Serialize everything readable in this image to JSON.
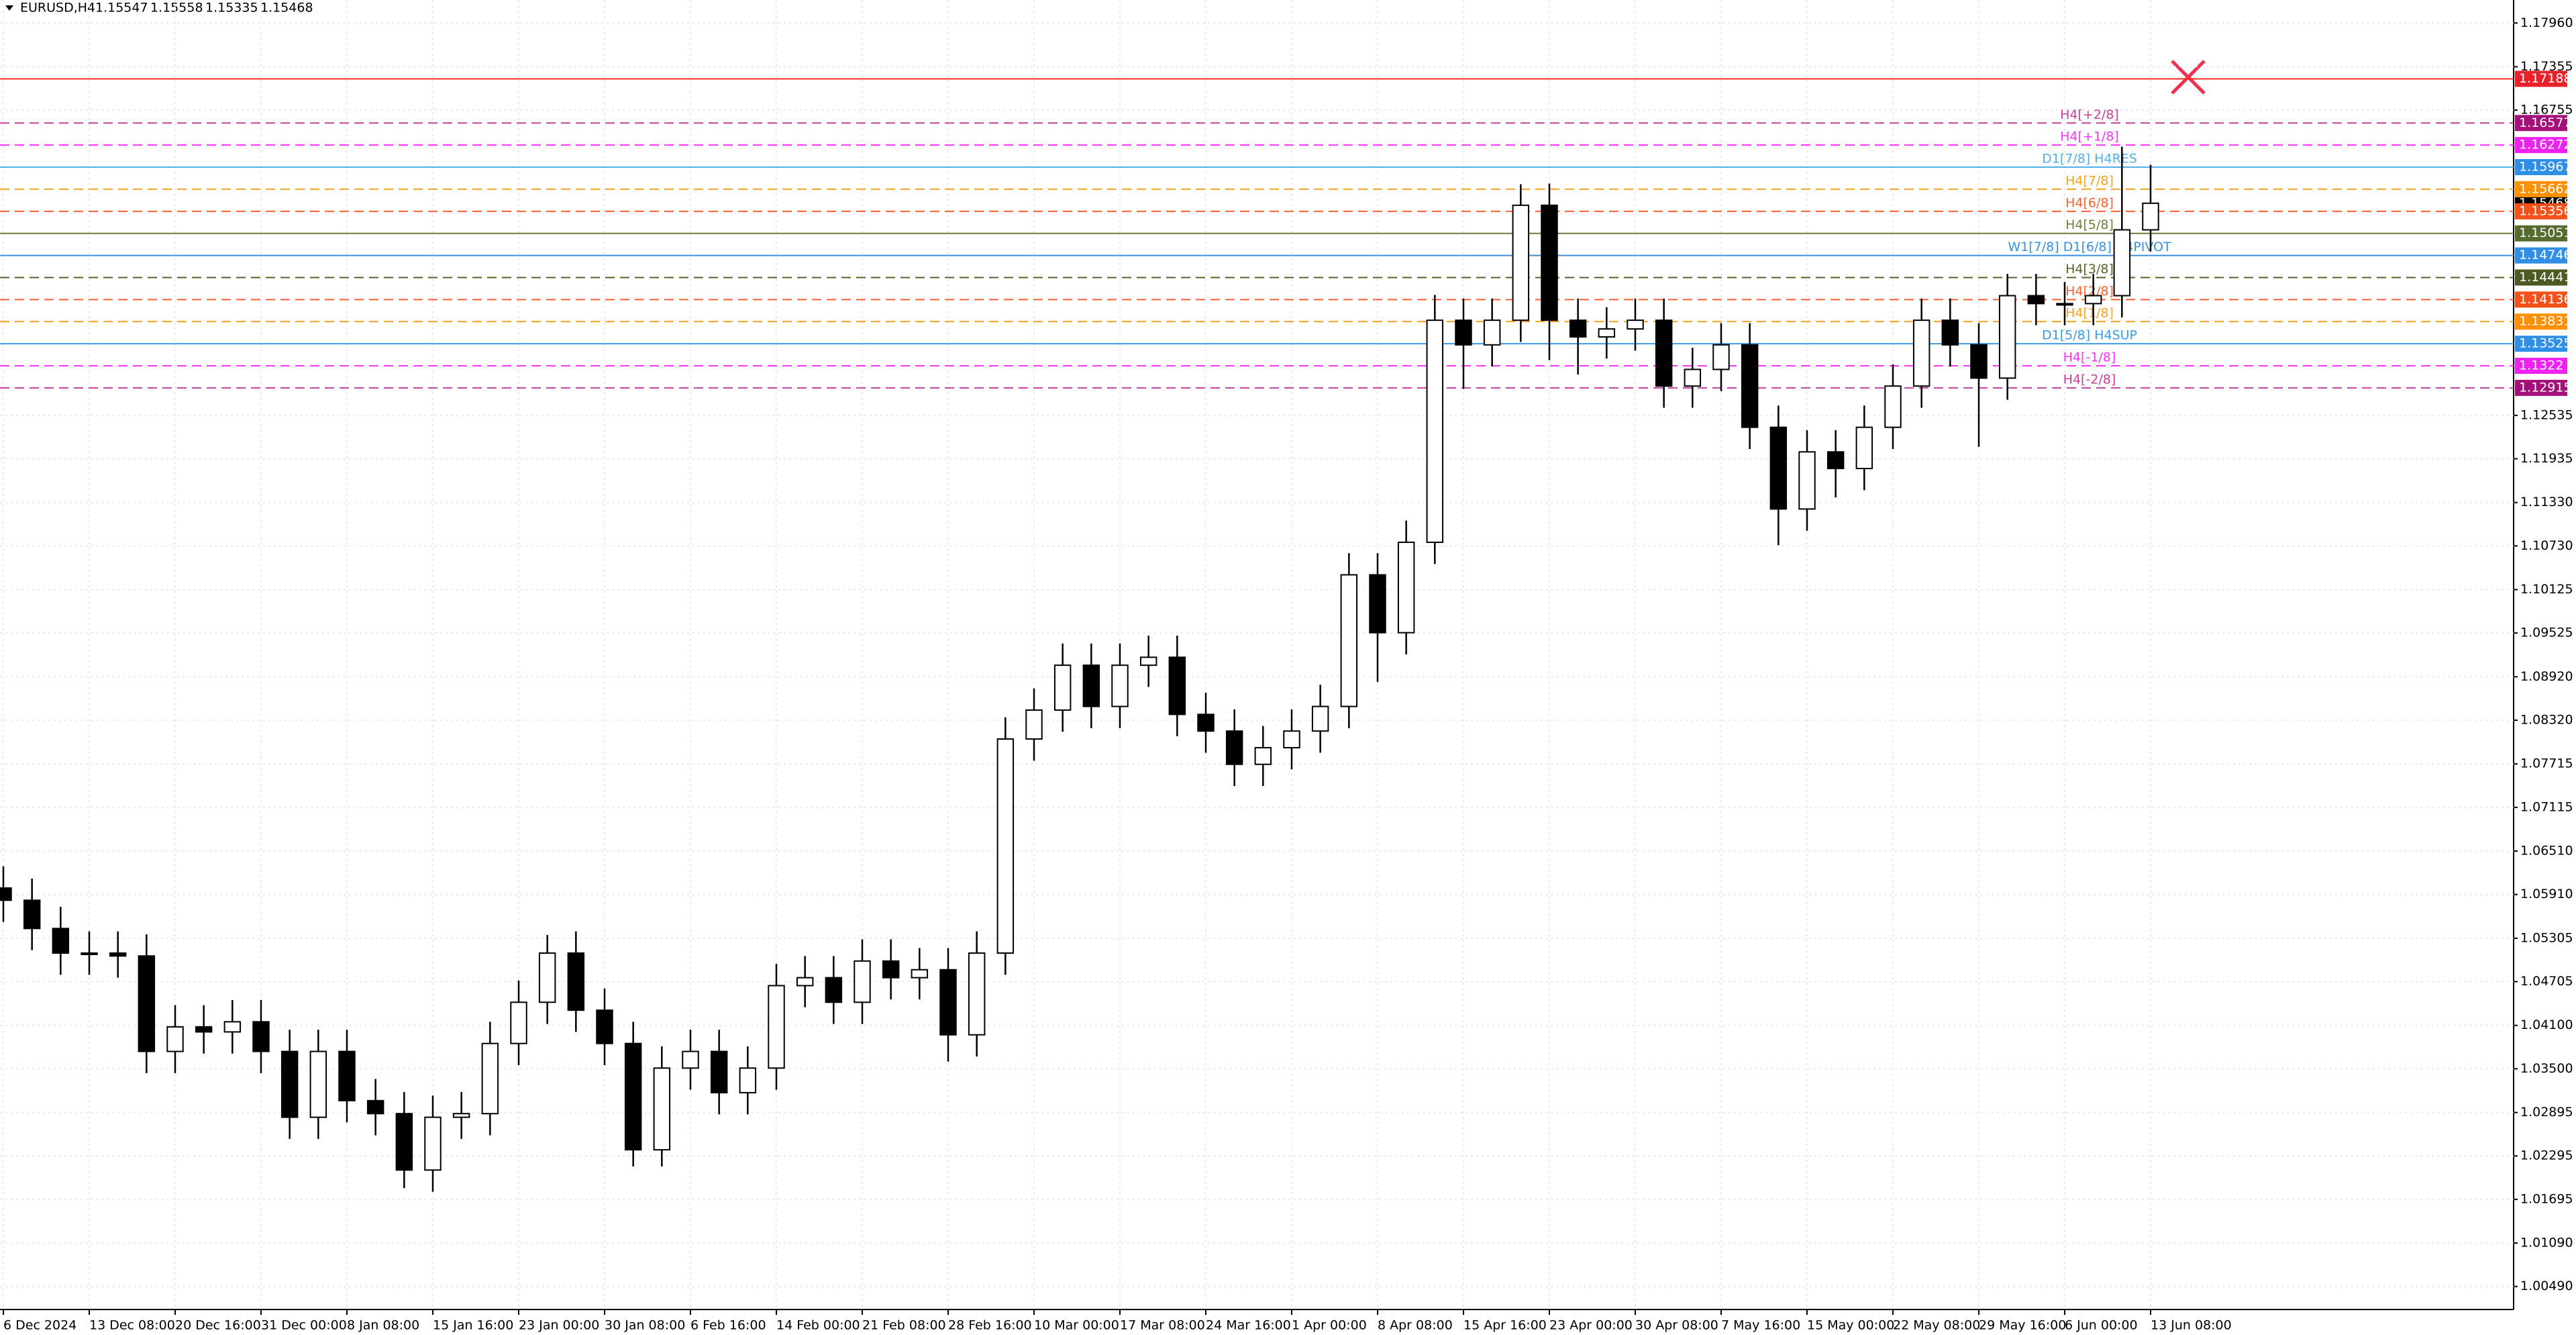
{
  "chart_data": {
    "type": "candlestick",
    "header": {
      "symbol": "EURUSD,H4",
      "ohlc": [
        1.15547,
        1.15558,
        1.15335,
        1.15468
      ]
    },
    "categories": [
      "6 Dec 2024",
      null,
      null,
      "13 Dec 08:00",
      null,
      null,
      "20 Dec 16:00",
      null,
      null,
      "31 Dec 00:00",
      null,
      null,
      "8 Jan 08:00",
      null,
      null,
      "15 Jan 16:00",
      null,
      null,
      "23 Jan 00:00",
      null,
      null,
      "30 Jan 08:00",
      null,
      null,
      "6 Feb 16:00",
      null,
      null,
      "14 Feb 00:00",
      null,
      null,
      "21 Feb 08:00",
      null,
      null,
      "28 Feb 16:00",
      null,
      null,
      "10 Mar 00:00",
      null,
      null,
      "17 Mar 08:00",
      null,
      null,
      "24 Mar 16:00",
      null,
      null,
      "1 Apr 00:00",
      null,
      null,
      "8 Apr 08:00",
      null,
      null,
      "15 Apr 16:00",
      null,
      null,
      "23 Apr 00:00",
      null,
      null,
      "30 Apr 08:00",
      null,
      null,
      "7 May 16:00",
      null,
      null,
      "15 May 00:00",
      null,
      null,
      "22 May 08:00",
      null,
      null,
      "29 May 16:00",
      null,
      null,
      "6 Jun 00:00",
      null,
      null,
      "13 Jun 08:00"
    ],
    "open": [
      1.06,
      1.0583,
      1.0544,
      1.051,
      1.051,
      1.0506,
      1.0374,
      1.0408,
      1.0401,
      1.0415,
      1.0374,
      1.0283,
      1.0374,
      1.0306,
      1.0288,
      1.021,
      1.0283,
      1.0288,
      1.0385,
      1.0442,
      1.051,
      1.0431,
      1.0385,
      1.0238,
      1.0351,
      1.0374,
      1.0317,
      1.0351,
      1.0465,
      1.0476,
      1.0442,
      1.0499,
      1.0476,
      1.0487,
      1.0397,
      1.051,
      1.0806,
      1.0846,
      1.0908,
      1.0851,
      1.0908,
      1.0919,
      1.084,
      1.0817,
      1.0771,
      1.0794,
      1.0817,
      1.0851,
      1.1033,
      1.0953,
      1.1078,
      1.1385,
      1.1351,
      1.1385,
      1.1544,
      1.1385,
      1.1362,
      1.1373,
      1.1385,
      1.1294,
      1.1317,
      1.1351,
      1.1237,
      1.1124,
      1.1203,
      1.118,
      1.1237,
      1.1294,
      1.1385,
      1.1351,
      1.1305,
      1.1419,
      1.1408,
      1.1408,
      1.1419,
      1.151
    ],
    "high": [
      1.063,
      1.0613,
      1.0574,
      1.054,
      1.054,
      1.0536,
      1.0438,
      1.0438,
      1.0445,
      1.0445,
      1.0404,
      1.0404,
      1.0404,
      1.0336,
      1.0318,
      1.0313,
      1.0318,
      1.0415,
      1.0472,
      1.0535,
      1.054,
      1.0461,
      1.0415,
      1.0381,
      1.0404,
      1.0404,
      1.0381,
      1.0495,
      1.0506,
      1.0506,
      1.0529,
      1.0529,
      1.0517,
      1.0517,
      1.054,
      1.0836,
      1.0876,
      1.0938,
      1.0938,
      1.0938,
      1.0949,
      1.0949,
      1.087,
      1.0847,
      1.0824,
      1.0847,
      1.0881,
      1.1063,
      1.1063,
      1.1108,
      1.142,
      1.1415,
      1.1415,
      1.1573,
      1.1574,
      1.1415,
      1.1403,
      1.1415,
      1.1415,
      1.1347,
      1.1381,
      1.1381,
      1.1267,
      1.1233,
      1.1233,
      1.1267,
      1.1324,
      1.1415,
      1.1415,
      1.1381,
      1.1449,
      1.1449,
      1.1438,
      1.1449,
      1.1625,
      1.16
    ],
    "low": [
      1.0553,
      1.0514,
      1.048,
      1.048,
      1.0476,
      1.0344,
      1.0344,
      1.0371,
      1.0371,
      1.0344,
      1.0253,
      1.0253,
      1.0276,
      1.0258,
      1.0185,
      1.018,
      1.0253,
      1.0258,
      1.0355,
      1.0412,
      1.0401,
      1.0355,
      1.0215,
      1.0215,
      1.0321,
      1.0287,
      1.0287,
      1.0321,
      1.0435,
      1.0412,
      1.0412,
      1.0446,
      1.0446,
      1.036,
      1.0367,
      1.048,
      1.0776,
      1.0816,
      1.0821,
      1.0821,
      1.0878,
      1.081,
      1.0787,
      1.0741,
      1.0741,
      1.0764,
      1.0787,
      1.0821,
      1.0885,
      1.0923,
      1.1048,
      1.129,
      1.1321,
      1.1355,
      1.133,
      1.131,
      1.1332,
      1.1343,
      1.1264,
      1.1264,
      1.1287,
      1.1207,
      1.1074,
      1.1094,
      1.114,
      1.115,
      1.1207,
      1.1264,
      1.1321,
      1.121,
      1.1275,
      1.1378,
      1.1378,
      1.1378,
      1.1389,
      1.148
    ],
    "close": [
      1.0583,
      1.0544,
      1.051,
      1.051,
      1.0506,
      1.0374,
      1.0408,
      1.0401,
      1.0415,
      1.0374,
      1.0283,
      1.0374,
      1.0306,
      1.0288,
      1.021,
      1.0283,
      1.0288,
      1.0385,
      1.0442,
      1.051,
      1.0431,
      1.0385,
      1.0238,
      1.0351,
      1.0374,
      1.0317,
      1.0351,
      1.0465,
      1.0476,
      1.0442,
      1.0499,
      1.0476,
      1.0487,
      1.0397,
      1.051,
      1.0806,
      1.0846,
      1.0908,
      1.0851,
      1.0908,
      1.0919,
      1.084,
      1.0817,
      1.0771,
      1.0794,
      1.0817,
      1.0851,
      1.1033,
      1.0953,
      1.1078,
      1.1385,
      1.1351,
      1.1385,
      1.1544,
      1.1385,
      1.1362,
      1.1373,
      1.1385,
      1.1294,
      1.1317,
      1.1351,
      1.1237,
      1.1124,
      1.1203,
      1.118,
      1.1237,
      1.1294,
      1.1385,
      1.1351,
      1.1305,
      1.1419,
      1.1408,
      1.1408,
      1.1419,
      1.151,
      1.15468
    ],
    "candle_color": "#000000",
    "ylim": [
      1.00172,
      1.18278
    ],
    "yticks": [
      {
        "value": 1.1796,
        "label": "1.17960"
      },
      1.17355,
      1.16755,
      1.12535,
      1.11935,
      {
        "value": 1.1133,
        "label": "1.11330"
      },
      {
        "value": 1.1073,
        "label": "1.10730"
      },
      1.10125,
      1.09525,
      {
        "value": 1.0892,
        "label": "1.08920"
      },
      {
        "value": 1.0832,
        "label": "1.08320"
      },
      1.07715,
      1.07115,
      {
        "value": 1.0651,
        "label": "1.06510"
      },
      {
        "value": 1.0591,
        "label": "1.05910"
      },
      1.05305,
      1.04705,
      {
        "value": 1.041,
        "label": "1.04100"
      },
      {
        "value": 1.035,
        "label": "1.03500"
      },
      1.02895,
      1.02295,
      1.01695,
      {
        "value": 1.0109,
        "label": "1.01090"
      },
      {
        "value": 1.0049,
        "label": "1.00490"
      }
    ],
    "grid": true,
    "current_price": 1.15468,
    "levels": [
      {
        "value": 1.17188,
        "color": "#ff2a2a",
        "box": "#e8202a",
        "style": "solid"
      },
      {
        "value": 1.16577,
        "color": "#c8409f",
        "box": "#a3107a",
        "style": "dashed",
        "label": "H4[+2/8]"
      },
      {
        "value": 1.16272,
        "color": "#ff33ff",
        "box": "#ee22ee",
        "style": "dashed",
        "label": "H4[+1/8]"
      },
      {
        "value": 1.15967,
        "color": "#55aee8",
        "box": "#2f8fe6",
        "style": "solid",
        "label": "D1[7/8] H4RES"
      },
      {
        "value": 1.15662,
        "color": "#ffa020",
        "box": "#ff9000",
        "style": "dashed",
        "label": "H4[7/8]"
      },
      {
        "value": 1.15356,
        "color": "#ff6030",
        "box": "#f4501a",
        "style": "dashed",
        "label": "H4[6/8]"
      },
      {
        "value": 1.15051,
        "color": "#6d7f3c",
        "box": "#556b2f",
        "style": "solid",
        "label": "H4[5/8]"
      },
      {
        "value": 1.14746,
        "color": "#3a90dc",
        "box": "#2f8fe6",
        "style": "solid",
        "label": "W1[7/8] D1[6/8] H4PIVOT"
      },
      {
        "value": 1.14441,
        "color": "#55652a",
        "box": "#4b5a22",
        "style": "dashed",
        "label": "H4[3/8]"
      },
      {
        "value": 1.14136,
        "color": "#ff6030",
        "box": "#f4501a",
        "style": "dashed",
        "label": "H4[2/8]"
      },
      {
        "value": 1.13831,
        "color": "#ffa020",
        "box": "#ff9000",
        "style": "dashed",
        "label": "H4[1/8]"
      },
      {
        "value": 1.13525,
        "color": "#3a9ae8",
        "box": "#2f8fe6",
        "style": "solid",
        "label": "D1[5/8] H4SUP"
      },
      {
        "value": 1.1322,
        "color": "#ff33ff",
        "box": "#ee22ee",
        "style": "dashed",
        "label": "H4[-1/8]"
      },
      {
        "value": 1.12915,
        "color": "#c8409f",
        "box": "#a3107a",
        "style": "dashed",
        "label": "H4[-2/8]"
      }
    ]
  }
}
